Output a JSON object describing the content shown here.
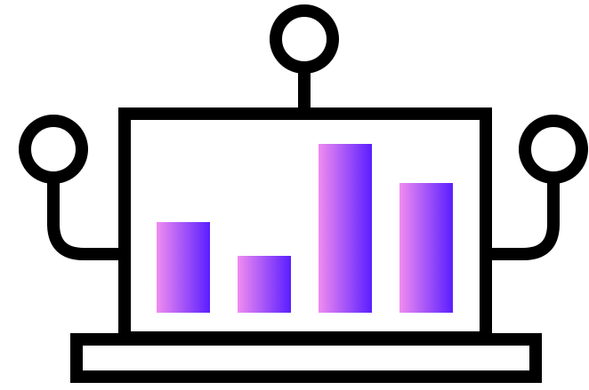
{
  "icon": {
    "name": "analytics-dashboard-icon",
    "outline_color": "#000000",
    "background_color": "#ffffff",
    "bar_gradient": [
      "#f08cf0",
      "#5a1eff"
    ],
    "bar_levels": [
      0.51,
      0.32,
      0.95,
      0.73
    ]
  }
}
